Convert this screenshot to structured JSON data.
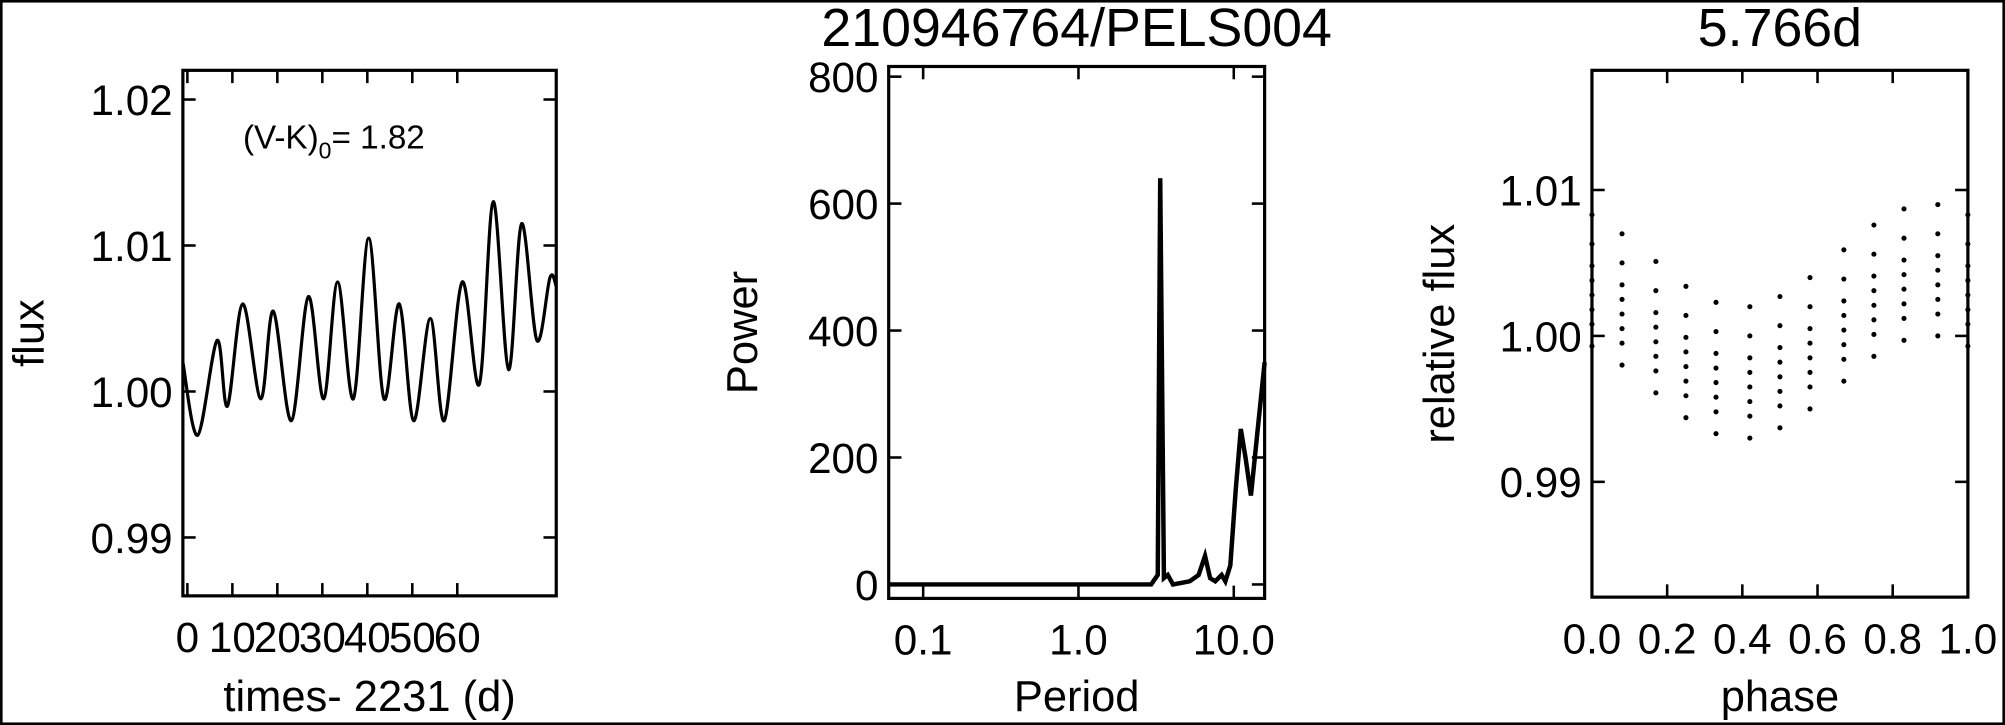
{
  "chart_data": [
    {
      "type": "line",
      "color": "#000000",
      "xlabel": "times- 2231 (d)",
      "ylabel": "flux",
      "annotation": {
        "text": "(V-K)",
        "subscript": "0",
        "value_text": "= 1.82"
      },
      "xlim": [
        -1,
        82
      ],
      "ylim": [
        0.986,
        1.022
      ],
      "xticks": [
        0,
        10,
        20,
        30,
        40,
        50,
        60
      ],
      "yticks": [
        0.99,
        {
          "value": 1.0,
          "label": "1.00"
        },
        1.01,
        1.02
      ],
      "x": [
        -1.0,
        2.3,
        6.6,
        8.9,
        12.3,
        16.3,
        19.1,
        23.1,
        26.9,
        30.3,
        33.4,
        36.9,
        40.3,
        43.7,
        47.1,
        50.3,
        54.0,
        57.1,
        61.1,
        64.9,
        68.0,
        71.4,
        74.3,
        77.7,
        80.6,
        82.0
      ],
      "y": [
        1.002,
        0.997,
        1.0035,
        0.999,
        1.006,
        0.9995,
        1.0055,
        0.998,
        1.0065,
        0.9995,
        1.0075,
        0.9995,
        1.0105,
        0.9995,
        1.006,
        0.998,
        1.005,
        0.998,
        1.0075,
        1.0005,
        1.013,
        1.0015,
        1.0115,
        1.0035,
        1.0078,
        1.0072
      ]
    },
    {
      "type": "line",
      "color": "#000000",
      "title": "210946764/PELS004",
      "xlabel": "Period",
      "ylabel": "Power",
      "xscale": "log",
      "xlim": [
        0.06,
        15.8
      ],
      "ylim": [
        -22,
        816
      ],
      "xticks": [
        0.1,
        {
          "value": 1.0,
          "label": "1.0"
        },
        {
          "value": 10.0,
          "label": "10.0"
        }
      ],
      "yticks": [
        0,
        200,
        400,
        600,
        800
      ],
      "x": [
        0.06,
        2.94,
        3.24,
        3.36,
        3.55,
        3.76,
        4.06,
        5.2,
        5.94,
        6.53,
        7.04,
        7.6,
        8.35,
        8.83,
        9.5,
        10.3,
        11.1,
        11.9,
        12.9,
        14.2,
        15.8
      ],
      "y": [
        0,
        0,
        15,
        640,
        10,
        15,
        0,
        5,
        15,
        45,
        10,
        5,
        15,
        5,
        30,
        150,
        245,
        200,
        140,
        240,
        350
      ]
    },
    {
      "type": "scatter",
      "color": "#000000",
      "title": "5.766d",
      "xlabel": "phase",
      "ylabel": "relative flux",
      "xlim": [
        0,
        1
      ],
      "ylim": [
        0.9821,
        1.0182
      ],
      "xticks": [
        {
          "value": 0,
          "label": "0.0"
        },
        0.2,
        0.4,
        0.6,
        0.8,
        {
          "value": 1,
          "label": "1.0"
        }
      ],
      "yticks": [
        0.99,
        {
          "value": 1.0,
          "label": "1.00"
        },
        1.01
      ],
      "x": [
        0,
        0.08,
        0.17,
        0.25,
        0.33,
        0.42,
        0.5,
        0.58,
        0.67,
        0.75,
        0.83,
        0.92,
        1.0,
        0,
        0.08,
        0.17,
        0.25,
        0.33,
        0.42,
        0.5,
        0.58,
        0.67,
        0.75,
        0.83,
        0.92,
        1.0,
        0,
        0.08,
        0.17,
        0.25,
        0.33,
        0.42,
        0.5,
        0.58,
        0.67,
        0.75,
        0.83,
        0.92,
        1.0,
        0,
        0.08,
        0.17,
        0.25,
        0.33,
        0.42,
        0.5,
        0.58,
        0.67,
        0.75,
        0.83,
        0.92,
        1.0,
        0,
        0.08,
        0.17,
        0.25,
        0.33,
        0.42,
        0.5,
        0.58,
        0.67,
        0.75,
        0.83,
        0.92,
        1.0,
        0,
        0.08,
        0.17,
        0.25,
        0.33,
        0.42,
        0.5,
        0.58,
        0.67,
        0.75,
        0.83,
        0.92,
        1.0,
        0,
        0.08,
        0.17,
        0.25,
        0.33,
        0.42,
        0.5,
        0.58,
        0.67,
        0.75,
        0.83,
        0.92,
        1.0,
        0,
        0.08,
        0.17,
        0.25,
        0.33,
        0.42,
        0.5,
        0.58,
        0.67,
        0.75,
        0.83,
        0.92,
        1.0
      ],
      "y": [
        1.0083,
        1.007,
        1.0051,
        1.0034,
        1.0023,
        1.002,
        1.0027,
        1.004,
        1.0059,
        1.0076,
        1.0087,
        1.009,
        1.0083,
        1.0063,
        1.005,
        1.0031,
        1.0014,
        1.0003,
        1.0,
        1.0007,
        1.002,
        1.0039,
        1.0056,
        1.0067,
        1.007,
        1.0063,
        1.0048,
        1.0035,
        1.0016,
        0.9999,
        0.9988,
        0.9985,
        0.9992,
        1.0005,
        1.0024,
        1.0041,
        1.0052,
        1.0055,
        1.0048,
        1.0038,
        1.0025,
        1.0006,
        0.9989,
        0.9978,
        0.9975,
        0.9982,
        0.9995,
        1.0014,
        1.0031,
        1.0042,
        1.0045,
        1.0038,
        1.0028,
        1.0015,
        0.9996,
        0.9979,
        0.9968,
        0.9965,
        0.9972,
        0.9985,
        1.0004,
        1.0021,
        1.0032,
        1.0035,
        1.0028,
        1.0018,
        1.0005,
        0.9986,
        0.9969,
        0.9958,
        0.9955,
        0.9962,
        0.9975,
        0.9994,
        1.0011,
        1.0022,
        1.0025,
        1.0018,
        1.0008,
        0.9995,
        0.9976,
        0.9959,
        0.9948,
        0.9945,
        0.9952,
        0.9965,
        0.9984,
        1.0001,
        1.0012,
        1.0015,
        1.0008,
        0.9993,
        0.998,
        0.9961,
        0.9944,
        0.9933,
        0.993,
        0.9937,
        0.995,
        0.9969,
        0.9986,
        0.9997,
        1.0,
        0.9993
      ]
    }
  ]
}
